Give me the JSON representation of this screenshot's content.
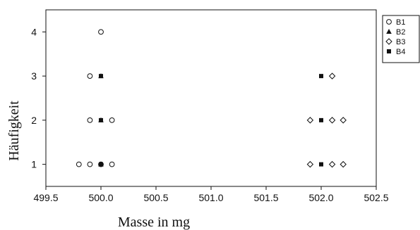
{
  "chart_data": {
    "type": "scatter",
    "title": "",
    "xlabel": "Masse in mg",
    "ylabel": "Häufigkeit",
    "xlim": [
      499.5,
      502.5
    ],
    "ylim": [
      0.5,
      4.5
    ],
    "xticks": [
      "499.5",
      "500.0",
      "500.5",
      "501.0",
      "501.5",
      "502.0",
      "502.5"
    ],
    "yticks": [
      "1",
      "2",
      "3",
      "4"
    ],
    "grid": false,
    "legend_position": "top-right",
    "series": [
      {
        "name": "B1",
        "marker": "circle-open",
        "points": [
          {
            "x": 500.0,
            "y": 4
          },
          {
            "x": 499.9,
            "y": 3
          },
          {
            "x": 499.9,
            "y": 2
          },
          {
            "x": 500.1,
            "y": 2
          },
          {
            "x": 499.8,
            "y": 1
          },
          {
            "x": 499.9,
            "y": 1
          },
          {
            "x": 500.0,
            "y": 1
          },
          {
            "x": 500.1,
            "y": 1
          }
        ]
      },
      {
        "name": "B2",
        "marker": "triangle-filled",
        "points": [
          {
            "x": 500.0,
            "y": 3
          },
          {
            "x": 500.0,
            "y": 2
          },
          {
            "x": 500.0,
            "y": 1
          }
        ]
      },
      {
        "name": "B3",
        "marker": "diamond-open",
        "points": [
          {
            "x": 502.1,
            "y": 3
          },
          {
            "x": 501.9,
            "y": 2
          },
          {
            "x": 502.1,
            "y": 2
          },
          {
            "x": 502.2,
            "y": 2
          },
          {
            "x": 501.9,
            "y": 1
          },
          {
            "x": 502.1,
            "y": 1
          },
          {
            "x": 502.2,
            "y": 1
          }
        ]
      },
      {
        "name": "B4",
        "marker": "square-filled",
        "points": [
          {
            "x": 500.0,
            "y": 3
          },
          {
            "x": 500.0,
            "y": 2
          },
          {
            "x": 500.0,
            "y": 1
          },
          {
            "x": 502.0,
            "y": 3
          },
          {
            "x": 502.0,
            "y": 2
          },
          {
            "x": 502.0,
            "y": 1
          }
        ]
      }
    ]
  }
}
